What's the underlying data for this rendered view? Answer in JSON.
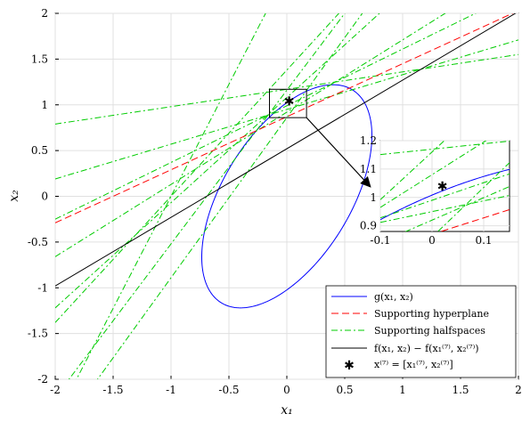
{
  "chart_data": {
    "type": "line",
    "xlabel": "x₁",
    "ylabel": "x₂",
    "xlim": [
      -2,
      2
    ],
    "ylim": [
      -2,
      2
    ],
    "x_ticks": [
      "-2",
      "-1.5",
      "-1",
      "-0.5",
      "0",
      "0.5",
      "1",
      "1.5",
      "2"
    ],
    "y_ticks": [
      "-2",
      "-1.5",
      "-1",
      "-0.5",
      "0",
      "0.5",
      "1",
      "1.5",
      "2"
    ],
    "grid": true,
    "legend_position": "bottom-right",
    "colors": {
      "ellipse": "#0000ff",
      "hyperplane": "#ff0000",
      "halfspaces": "#00cc00",
      "level": "#000000",
      "point": "#000000"
    },
    "ellipse": {
      "center": [
        0.0,
        0.0
      ],
      "x_extent": [
        -0.67,
        0.67
      ],
      "y_extent": [
        -1.22,
        1.22
      ],
      "top_point": [
        0.4,
        1.22
      ]
    },
    "point": {
      "x": 0.02,
      "y": 1.04
    },
    "series": [
      {
        "name": "g(x₁, x₂)",
        "kind": "ellipse"
      },
      {
        "name": "Supporting hyperplane",
        "kind": "line",
        "slope": 0.58,
        "intercept": 0.87
      },
      {
        "name": "Supporting halfspaces",
        "kind": "lines",
        "lines": [
          {
            "slope": 0.19,
            "intercept": 1.17
          },
          {
            "slope": 0.38,
            "intercept": 0.95
          },
          {
            "slope": 0.62,
            "intercept": 0.99
          },
          {
            "slope": 0.79,
            "intercept": 0.92
          },
          {
            "slope": 1.15,
            "intercept": 1.08
          },
          {
            "slope": 1.38,
            "intercept": 1.38
          },
          {
            "slope": 1.68,
            "intercept": 1.16
          },
          {
            "slope": 1.75,
            "intercept": 0.86
          },
          {
            "slope": 2.45,
            "intercept": 2.45
          }
        ]
      },
      {
        "name": "f(x₁, x₂) − f(x₁⁽⁷⁾, x₂⁽⁷⁾)",
        "kind": "line",
        "slope": 0.75,
        "intercept": 0.52
      },
      {
        "name": "x⁽⁷⁾ = [x₁⁽⁷⁾, x₂⁽⁷⁾]",
        "kind": "point"
      }
    ],
    "zoom_box": {
      "xlim": [
        -0.15,
        0.17
      ],
      "ylim": [
        0.86,
        1.17
      ]
    },
    "inset": {
      "xlim": [
        -0.1,
        0.15
      ],
      "ylim": [
        0.88,
        1.2
      ],
      "x_ticks": [
        "-0.1",
        "0",
        "0.1"
      ],
      "y_ticks": [
        "0.9",
        "1",
        "1.1",
        "1.2"
      ]
    }
  }
}
